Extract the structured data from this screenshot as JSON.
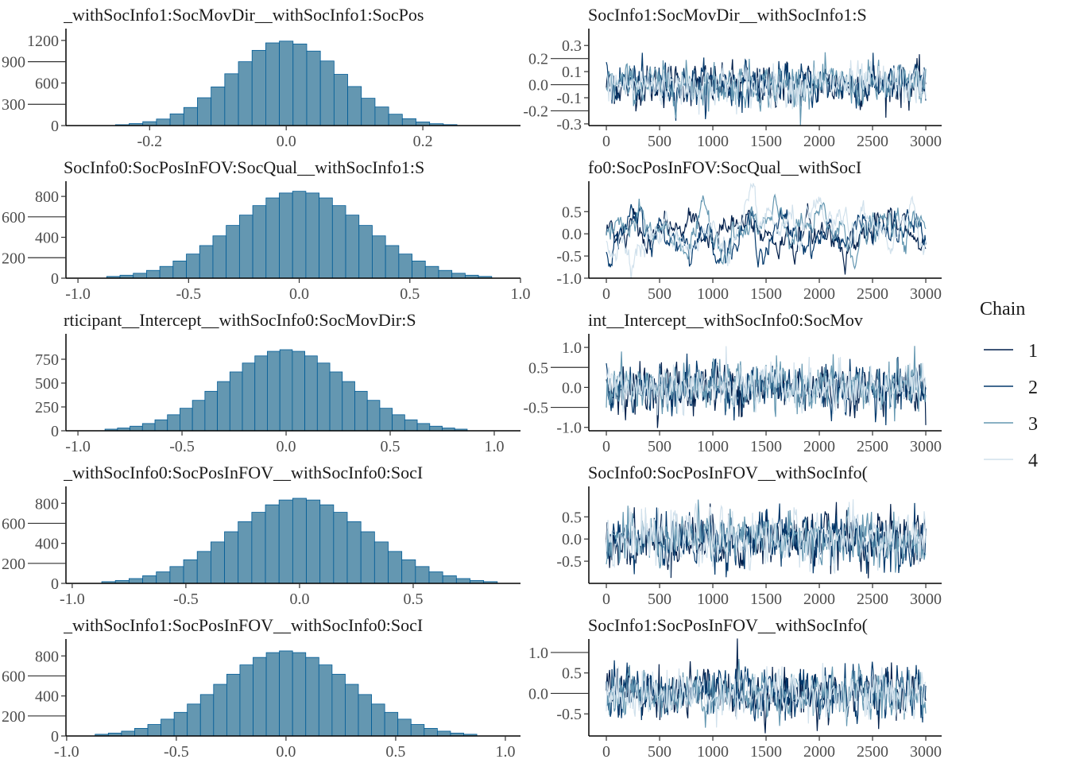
{
  "colors": {
    "fill": "#6497b1",
    "outline": "#005b96",
    "chains": [
      "#011f4b",
      "#03396c",
      "#6497b1",
      "#d1e1ec"
    ]
  },
  "legend": {
    "title": "Chain",
    "items": [
      "1",
      "2",
      "3",
      "4"
    ]
  },
  "chart_data": [
    {
      "type": "histogram",
      "title": "_withSocInfo1:SocMovDir__withSocInfo1:SocPos",
      "xlim": [
        -0.326,
        0.343
      ],
      "ylim": [
        0,
        1344
      ],
      "xticks": [
        -0.2,
        0.0,
        0.2
      ],
      "xtick_labels": [
        "-0.2",
        "0.0",
        "0.2"
      ],
      "yticks": [
        0,
        300,
        600,
        900,
        1200
      ],
      "ytick_labels": [
        "0",
        "300",
        "600",
        "900",
        "1200"
      ],
      "bin_width": 0.02,
      "bin_centers": [
        -0.24,
        -0.22,
        -0.2,
        -0.18,
        -0.16,
        -0.14,
        -0.12,
        -0.1,
        -0.08,
        -0.06,
        -0.04,
        -0.02,
        0,
        0.02,
        0.04,
        0.06,
        0.08,
        0.1,
        0.12,
        0.14,
        0.16,
        0.18,
        0.2,
        0.22,
        0.24
      ],
      "counts": [
        12,
        28,
        55,
        92,
        165,
        255,
        392,
        545,
        730,
        900,
        1060,
        1165,
        1190,
        1150,
        1050,
        910,
        722,
        550,
        385,
        262,
        160,
        97,
        51,
        26,
        13
      ]
    },
    {
      "type": "trace",
      "title": "SocInfo1:SocMovDir__withSocInfo1:S",
      "xlim": [
        -172,
        3149
      ],
      "ylim": [
        -0.313,
        0.417
      ],
      "iterations": 3000,
      "xticks": [
        0,
        500,
        1000,
        1500,
        2000,
        2500,
        3000
      ],
      "xtick_labels": [
        "0",
        "500",
        "1000",
        "1500",
        "2000",
        "2500",
        "3000"
      ],
      "yticks": [
        -0.3,
        -0.2,
        -0.1,
        0.0,
        0.1,
        0.2,
        0.3
      ],
      "ytick_labels": [
        "-0.3",
        "-0.2",
        "-0.1",
        "0.0",
        "0.1",
        "0.2",
        "0.3"
      ],
      "center": 0.0,
      "spread": 0.08,
      "autocorr": 0.3
    },
    {
      "type": "histogram",
      "title": "SocInfo0:SocPosInFOV:SocQual__withSocInfo1:S",
      "xlim": [
        -1.065,
        1.0
      ],
      "ylim": [
        0,
        933
      ],
      "xticks": [
        -1.0,
        -0.5,
        0.0,
        0.5,
        1.0
      ],
      "xtick_labels": [
        "-1.0",
        "-0.5",
        "0.0",
        "0.5",
        "1.0"
      ],
      "yticks": [
        0,
        200,
        400,
        600,
        800
      ],
      "ytick_labels": [
        "0",
        "200",
        "400",
        "600",
        "800"
      ],
      "bin_width": 0.06,
      "bin_centers": [
        -0.84,
        -0.78,
        -0.72,
        -0.66,
        -0.6,
        -0.54,
        -0.48,
        -0.42,
        -0.36,
        -0.3,
        -0.24,
        -0.18,
        -0.12,
        -0.06,
        0,
        0.06,
        0.12,
        0.18,
        0.24,
        0.3,
        0.36,
        0.42,
        0.48,
        0.54,
        0.6,
        0.66,
        0.72,
        0.78,
        0.84
      ],
      "counts": [
        17,
        29,
        48,
        76,
        115,
        168,
        236,
        319,
        414,
        516,
        617,
        710,
        785,
        833,
        850,
        833,
        785,
        710,
        617,
        516,
        414,
        319,
        236,
        168,
        115,
        76,
        48,
        29,
        17
      ]
    },
    {
      "type": "trace",
      "title": "fo0:SocPosInFOV:SocQual__withSocI",
      "xlim": [
        -172,
        3149
      ],
      "ylim": [
        -1.0,
        1.15
      ],
      "iterations": 3000,
      "xticks": [
        0,
        500,
        1000,
        1500,
        2000,
        2500,
        3000
      ],
      "xtick_labels": [
        "0",
        "500",
        "1000",
        "1500",
        "2000",
        "2500",
        "3000"
      ],
      "yticks": [
        -1.0,
        -0.5,
        0.0,
        0.5
      ],
      "ytick_labels": [
        "-1.0",
        "-0.5",
        "0.0",
        "0.5"
      ],
      "center": 0.0,
      "spread": 0.3,
      "autocorr": 0.9
    },
    {
      "type": "histogram",
      "title": "rticipant__Intercept__withSocInfo0:SocMovDir:S",
      "xlim": [
        -1.069,
        1.126
      ],
      "ylim": [
        0,
        1000
      ],
      "xticks": [
        -1.0,
        -0.5,
        0.0,
        0.5,
        1.0
      ],
      "xtick_labels": [
        "-1.0",
        "-0.5",
        "0.0",
        "0.5",
        "1.0"
      ],
      "yticks": [
        0,
        250,
        500,
        750
      ],
      "ytick_labels": [
        "0",
        "250",
        "500",
        "750"
      ],
      "bin_width": 0.06,
      "bin_centers": [
        -0.84,
        -0.78,
        -0.72,
        -0.66,
        -0.6,
        -0.54,
        -0.48,
        -0.42,
        -0.36,
        -0.3,
        -0.24,
        -0.18,
        -0.12,
        -0.06,
        0,
        0.06,
        0.12,
        0.18,
        0.24,
        0.3,
        0.36,
        0.42,
        0.48,
        0.54,
        0.6,
        0.66,
        0.72,
        0.78,
        0.84
      ],
      "counts": [
        17,
        29,
        48,
        76,
        115,
        168,
        236,
        319,
        414,
        516,
        617,
        710,
        785,
        833,
        850,
        833,
        785,
        710,
        617,
        516,
        414,
        319,
        236,
        168,
        115,
        76,
        48,
        29,
        17
      ]
    },
    {
      "type": "trace",
      "title": "int__Intercept__withSocInfo0:SocMov",
      "xlim": [
        -172,
        3149
      ],
      "ylim": [
        -1.085,
        1.3
      ],
      "iterations": 3000,
      "xticks": [
        0,
        500,
        1000,
        1500,
        2000,
        2500,
        3000
      ],
      "xtick_labels": [
        "0",
        "500",
        "1000",
        "1500",
        "2000",
        "2500",
        "3000"
      ],
      "yticks": [
        -1.0,
        -0.5,
        0.0,
        0.5,
        1.0
      ],
      "ytick_labels": [
        "-1.0",
        "-0.5",
        "0.0",
        "0.5",
        "1.0"
      ],
      "center": 0.0,
      "spread": 0.3,
      "autocorr": 0.3
    },
    {
      "type": "histogram",
      "title": "_withSocInfo0:SocPosInFOV__withSocInfo0:SocI",
      "xlim": [
        -1.038,
        0.972
      ],
      "ylim": [
        0,
        953
      ],
      "xticks": [
        -1.0,
        -0.5,
        0.0,
        0.5
      ],
      "xtick_labels": [
        "-1.0",
        "-0.5",
        "0.0",
        "0.5"
      ],
      "yticks": [
        0,
        200,
        400,
        600,
        800
      ],
      "ytick_labels": [
        "0",
        "200",
        "400",
        "600",
        "800"
      ],
      "bin_width": 0.06,
      "bin_centers": [
        -0.84,
        -0.78,
        -0.72,
        -0.66,
        -0.6,
        -0.54,
        -0.48,
        -0.42,
        -0.36,
        -0.3,
        -0.24,
        -0.18,
        -0.12,
        -0.06,
        0,
        0.06,
        0.12,
        0.18,
        0.24,
        0.3,
        0.36,
        0.42,
        0.48,
        0.54,
        0.6,
        0.66,
        0.72,
        0.78,
        0.84
      ],
      "counts": [
        17,
        29,
        48,
        76,
        115,
        168,
        236,
        319,
        414,
        516,
        617,
        710,
        785,
        833,
        850,
        833,
        785,
        710,
        617,
        516,
        414,
        319,
        236,
        168,
        115,
        76,
        48,
        29,
        17
      ]
    },
    {
      "type": "trace",
      "title": "SocInfo0:SocPosInFOV__withSocInfo(",
      "xlim": [
        -172,
        3149
      ],
      "ylim": [
        -1.0,
        1.15
      ],
      "iterations": 3000,
      "xticks": [
        0,
        500,
        1000,
        1500,
        2000,
        2500,
        3000
      ],
      "xtick_labels": [
        "0",
        "500",
        "1000",
        "1500",
        "2000",
        "2500",
        "3000"
      ],
      "yticks": [
        -0.5,
        0.0,
        0.5
      ],
      "ytick_labels": [
        "-0.5",
        "0.0",
        "0.5"
      ],
      "center": 0.0,
      "spread": 0.3,
      "autocorr": 0.3
    },
    {
      "type": "histogram",
      "title": "_withSocInfo1:SocPosInFOV__withSocInfo0:SocI",
      "xlim": [
        -1.014,
        1.069
      ],
      "ylim": [
        0,
        953
      ],
      "xticks": [
        -1.0,
        -0.5,
        0.0,
        0.5,
        1.0
      ],
      "xtick_labels": [
        "-1.0",
        "-0.5",
        "0.0",
        "0.5",
        "1.0"
      ],
      "yticks": [
        0,
        200,
        400,
        600,
        800
      ],
      "ytick_labels": [
        "0",
        "200",
        "400",
        "600",
        "800"
      ],
      "bin_width": 0.06,
      "bin_centers": [
        -0.84,
        -0.78,
        -0.72,
        -0.66,
        -0.6,
        -0.54,
        -0.48,
        -0.42,
        -0.36,
        -0.3,
        -0.24,
        -0.18,
        -0.12,
        -0.06,
        0,
        0.06,
        0.12,
        0.18,
        0.24,
        0.3,
        0.36,
        0.42,
        0.48,
        0.54,
        0.6,
        0.66,
        0.72,
        0.78,
        0.84
      ],
      "counts": [
        17,
        29,
        48,
        76,
        115,
        168,
        236,
        319,
        414,
        516,
        617,
        710,
        785,
        833,
        850,
        833,
        785,
        710,
        617,
        516,
        414,
        319,
        236,
        168,
        115,
        76,
        48,
        29,
        17
      ]
    },
    {
      "type": "trace",
      "title": "SocInfo1:SocPosInFOV__withSocInfo(",
      "xlim": [
        -172,
        3149
      ],
      "ylim": [
        -1.04,
        1.29
      ],
      "iterations": 3000,
      "xticks": [
        0,
        500,
        1000,
        1500,
        2000,
        2500,
        3000
      ],
      "xtick_labels": [
        "0",
        "500",
        "1000",
        "1500",
        "2000",
        "2500",
        "3000"
      ],
      "yticks": [
        -0.5,
        0.0,
        0.5,
        1.0
      ],
      "ytick_labels": [
        "-0.5",
        "0.0",
        "0.5",
        "1.0"
      ],
      "center": 0.0,
      "spread": 0.3,
      "autocorr": 0.3
    }
  ]
}
